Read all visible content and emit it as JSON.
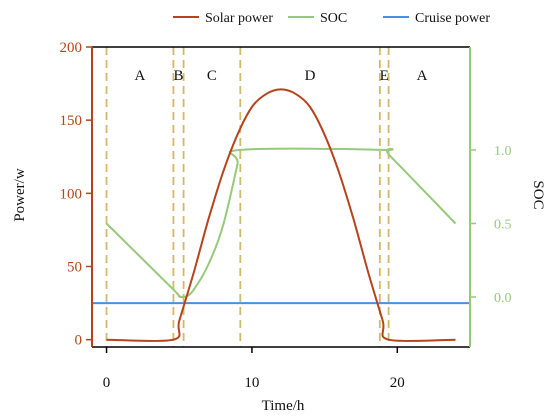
{
  "chart_data": {
    "type": "line",
    "xlabel": "Time/h",
    "ylabel_left": "Power/w",
    "ylabel_right": "SOC",
    "xlim": [
      -1,
      25
    ],
    "ylim_left": [
      -5,
      200
    ],
    "ylim_right": [
      -0.34,
      1.7
    ],
    "x_ticks": [
      0,
      10,
      20
    ],
    "y_left_ticks": [
      0,
      50,
      100,
      150,
      200
    ],
    "y_right_ticks": [
      0.0,
      0.5,
      1.0
    ],
    "y_right_tick_labels": [
      "0.0",
      "0.5",
      "1.0"
    ],
    "grid": false,
    "legend_position": "top",
    "series": [
      {
        "name": "Solar power",
        "axis": "left",
        "color": "#b5441a",
        "x": [
          0,
          4.6,
          5,
          6,
          7,
          8,
          9,
          10,
          11,
          12,
          13,
          14,
          15,
          16,
          17,
          18,
          19,
          19.4,
          24
        ],
        "y": [
          0,
          0,
          12.8,
          46,
          82,
          114,
          140,
          159,
          168,
          171,
          168,
          159,
          140,
          114,
          82,
          46,
          12.8,
          0,
          0
        ]
      },
      {
        "name": "SOC",
        "axis": "right",
        "color": "#96c97a",
        "x": [
          0,
          4.6,
          5,
          5.5,
          6,
          7,
          8,
          9,
          9.2,
          19,
          19.5,
          24
        ],
        "y": [
          0.5,
          0.05,
          0.005,
          0.005,
          0.05,
          0.22,
          0.48,
          0.9,
          1.0,
          1.0,
          0.96,
          0.5
        ]
      },
      {
        "name": "Cruise power",
        "axis": "left",
        "color": "#4a8fe0",
        "x": [
          -1,
          25
        ],
        "y": [
          25,
          25
        ]
      }
    ],
    "phase_boundaries": [
      0,
      4.6,
      5.3,
      9.2,
      18.8,
      19.4
    ],
    "phases": [
      {
        "label": "A",
        "x": 2.3
      },
      {
        "label": "B",
        "x": 4.95
      },
      {
        "label": "C",
        "x": 7.25
      },
      {
        "label": "D",
        "x": 14.0
      },
      {
        "label": "E",
        "x": 19.1
      },
      {
        "label": "A",
        "x": 21.7
      }
    ],
    "boundary_color": "#d4b86a"
  }
}
